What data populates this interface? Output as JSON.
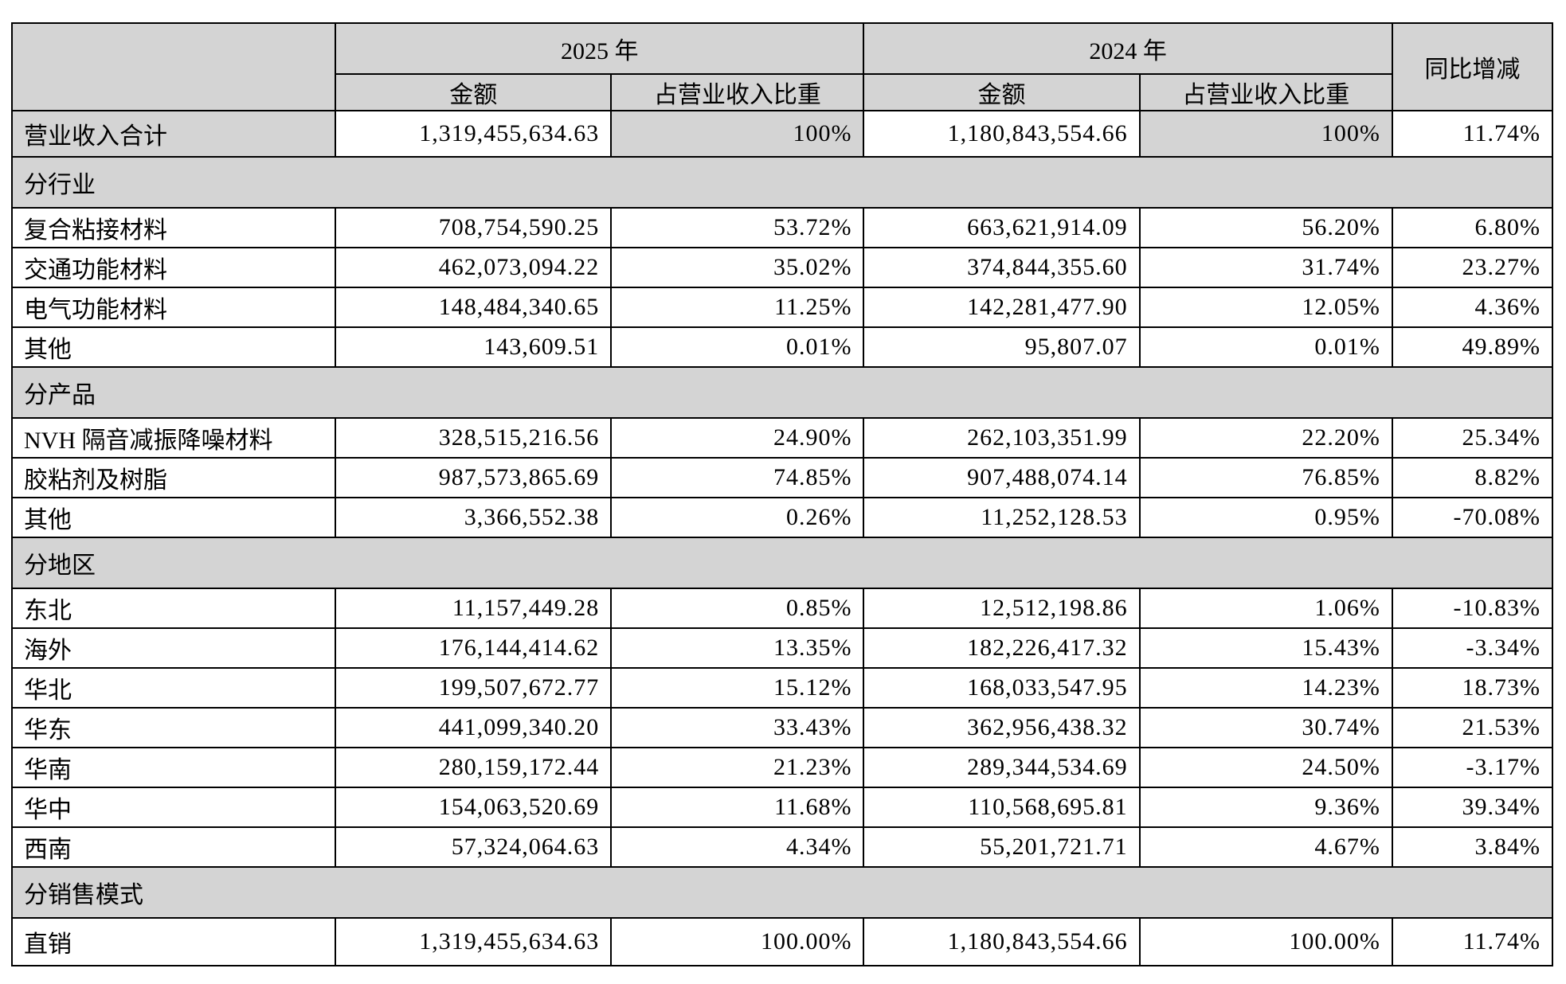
{
  "colors": {
    "header_bg": "#d4d4d4",
    "border": "#000000",
    "page_bg": "#ffffff"
  },
  "table": {
    "header": {
      "year_2025": "2025 年",
      "year_2024": "2024 年",
      "yoy": "同比增减",
      "amount": "金额",
      "ratio": "占营业收入比重"
    },
    "total_row": {
      "label": "营业收入合计",
      "amount_2025": "1,319,455,634.63",
      "ratio_2025": "100%",
      "amount_2024": "1,180,843,554.66",
      "ratio_2024": "100%",
      "yoy": "11.74%"
    },
    "sections": [
      {
        "title": "分行业",
        "rows": [
          {
            "label": "复合粘接材料",
            "amount_2025": "708,754,590.25",
            "ratio_2025": "53.72%",
            "amount_2024": "663,621,914.09",
            "ratio_2024": "56.20%",
            "yoy": "6.80%"
          },
          {
            "label": "交通功能材料",
            "amount_2025": "462,073,094.22",
            "ratio_2025": "35.02%",
            "amount_2024": "374,844,355.60",
            "ratio_2024": "31.74%",
            "yoy": "23.27%"
          },
          {
            "label": "电气功能材料",
            "amount_2025": "148,484,340.65",
            "ratio_2025": "11.25%",
            "amount_2024": "142,281,477.90",
            "ratio_2024": "12.05%",
            "yoy": "4.36%"
          },
          {
            "label": "其他",
            "amount_2025": "143,609.51",
            "ratio_2025": "0.01%",
            "amount_2024": "95,807.07",
            "ratio_2024": "0.01%",
            "yoy": "49.89%"
          }
        ]
      },
      {
        "title": "分产品",
        "rows": [
          {
            "label": "NVH 隔音减振降噪材料",
            "amount_2025": "328,515,216.56",
            "ratio_2025": "24.90%",
            "amount_2024": "262,103,351.99",
            "ratio_2024": "22.20%",
            "yoy": "25.34%"
          },
          {
            "label": "胶粘剂及树脂",
            "amount_2025": "987,573,865.69",
            "ratio_2025": "74.85%",
            "amount_2024": "907,488,074.14",
            "ratio_2024": "76.85%",
            "yoy": "8.82%"
          },
          {
            "label": "其他",
            "amount_2025": "3,366,552.38",
            "ratio_2025": "0.26%",
            "amount_2024": "11,252,128.53",
            "ratio_2024": "0.95%",
            "yoy": "-70.08%"
          }
        ]
      },
      {
        "title": "分地区",
        "rows": [
          {
            "label": "东北",
            "amount_2025": "11,157,449.28",
            "ratio_2025": "0.85%",
            "amount_2024": "12,512,198.86",
            "ratio_2024": "1.06%",
            "yoy": "-10.83%"
          },
          {
            "label": "海外",
            "amount_2025": "176,144,414.62",
            "ratio_2025": "13.35%",
            "amount_2024": "182,226,417.32",
            "ratio_2024": "15.43%",
            "yoy": "-3.34%"
          },
          {
            "label": "华北",
            "amount_2025": "199,507,672.77",
            "ratio_2025": "15.12%",
            "amount_2024": "168,033,547.95",
            "ratio_2024": "14.23%",
            "yoy": "18.73%"
          },
          {
            "label": "华东",
            "amount_2025": "441,099,340.20",
            "ratio_2025": "33.43%",
            "amount_2024": "362,956,438.32",
            "ratio_2024": "30.74%",
            "yoy": "21.53%"
          },
          {
            "label": "华南",
            "amount_2025": "280,159,172.44",
            "ratio_2025": "21.23%",
            "amount_2024": "289,344,534.69",
            "ratio_2024": "24.50%",
            "yoy": "-3.17%"
          },
          {
            "label": "华中",
            "amount_2025": "154,063,520.69",
            "ratio_2025": "11.68%",
            "amount_2024": "110,568,695.81",
            "ratio_2024": "9.36%",
            "yoy": "39.34%"
          },
          {
            "label": "西南",
            "amount_2025": "57,324,064.63",
            "ratio_2025": "4.34%",
            "amount_2024": "55,201,721.71",
            "ratio_2024": "4.67%",
            "yoy": "3.84%"
          }
        ]
      },
      {
        "title": "分销售模式",
        "rows": [
          {
            "label": "直销",
            "amount_2025": "1,319,455,634.63",
            "ratio_2025": "100.00%",
            "amount_2024": "1,180,843,554.66",
            "ratio_2024": "100.00%",
            "yoy": "11.74%"
          }
        ]
      }
    ]
  }
}
